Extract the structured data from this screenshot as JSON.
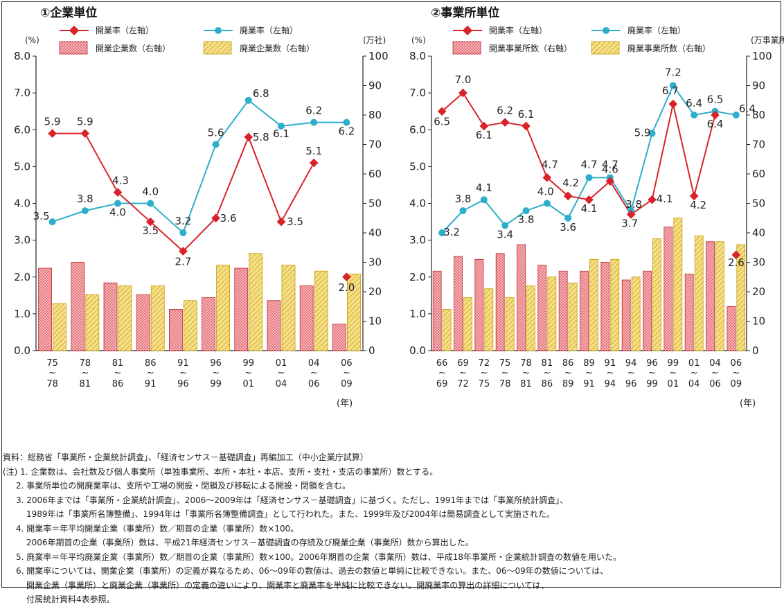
{
  "chart_data": [
    {
      "type": "bar+line",
      "title": "①企業単位",
      "left_unit": "(%)",
      "right_unit": "(万社)",
      "year_unit": "(年)",
      "left_axis": {
        "ylim": [
          0,
          8
        ],
        "ticks": [
          "0.0",
          "1.0",
          "2.0",
          "3.0",
          "4.0",
          "5.0",
          "6.0",
          "7.0",
          "8.0"
        ]
      },
      "right_axis": {
        "ylim": [
          0,
          100
        ],
        "ticks": [
          "0",
          "10",
          "20",
          "30",
          "40",
          "50",
          "60",
          "70",
          "80",
          "90",
          "100"
        ]
      },
      "categories": [
        [
          "75",
          "78"
        ],
        [
          "78",
          "81"
        ],
        [
          "81",
          "86"
        ],
        [
          "86",
          "91"
        ],
        [
          "91",
          "96"
        ],
        [
          "96",
          "99"
        ],
        [
          "99",
          "01"
        ],
        [
          "01",
          "04"
        ],
        [
          "04",
          "06"
        ],
        [
          "06",
          "09"
        ]
      ],
      "legend": {
        "open_rate": "開業率（左軸）",
        "close_rate": "廃業率（左軸）",
        "open_count": "開業企業数（右軸）",
        "close_count": "廃業企業数（右軸）"
      },
      "series": [
        {
          "key": "open_rate",
          "axis": "left",
          "values": [
            5.9,
            5.9,
            4.3,
            3.5,
            2.7,
            3.6,
            5.8,
            3.5,
            5.1,
            2.0
          ],
          "labels": [
            "5.9",
            "5.9",
            "4.3",
            "3.5",
            "2.7",
            "3.6",
            "5.8",
            "3.5",
            "5.1",
            "2.0"
          ]
        },
        {
          "key": "close_rate",
          "axis": "left",
          "values": [
            3.5,
            3.8,
            4.0,
            4.0,
            3.2,
            5.6,
            6.8,
            6.1,
            6.2,
            6.2
          ],
          "labels": [
            "3.5",
            "3.8",
            "4.0",
            "4.0",
            "3.2",
            "5.6",
            "6.8",
            "6.1",
            "6.2",
            "6.2"
          ]
        },
        {
          "key": "open_count",
          "axis": "right",
          "values": [
            28,
            30,
            23,
            19,
            14,
            18,
            28,
            17,
            22,
            9
          ]
        },
        {
          "key": "close_count",
          "axis": "right",
          "values": [
            16,
            19,
            22,
            22,
            17,
            29,
            33,
            29,
            27,
            26
          ]
        }
      ],
      "colors": {
        "open_line": "#d8232a",
        "close_line": "#2eaecb",
        "open_bar": "#f3b9bd",
        "close_bar": "#f5df8a"
      }
    },
    {
      "type": "bar+line",
      "title": "②事業所単位",
      "left_unit": "(%)",
      "right_unit": "(万事業所",
      "year_unit": "(年)",
      "left_axis": {
        "ylim": [
          0,
          8
        ],
        "ticks": [
          "0.0",
          "1.0",
          "2.0",
          "3.0",
          "4.0",
          "5.0",
          "6.0",
          "7.0",
          "8.0"
        ]
      },
      "right_axis": {
        "ylim": [
          0,
          100
        ],
        "ticks": [
          "0",
          "10",
          "20",
          "30",
          "40",
          "50",
          "60",
          "70",
          "80",
          "90",
          "100"
        ]
      },
      "categories": [
        [
          "66",
          "69"
        ],
        [
          "69",
          "72"
        ],
        [
          "72",
          "75"
        ],
        [
          "75",
          "78"
        ],
        [
          "78",
          "81"
        ],
        [
          "81",
          "86"
        ],
        [
          "86",
          "89"
        ],
        [
          "89",
          "91"
        ],
        [
          "91",
          "94"
        ],
        [
          "94",
          "96"
        ],
        [
          "96",
          "99"
        ],
        [
          "99",
          "01"
        ],
        [
          "01",
          "04"
        ],
        [
          "04",
          "06"
        ],
        [
          "06",
          "09"
        ]
      ],
      "legend": {
        "open_rate": "開業率（左軸）",
        "close_rate": "廃業率（左軸）",
        "open_count": "開業事業所数（右軸）",
        "close_count": "廃業事業所数（右軸）"
      },
      "series": [
        {
          "key": "open_rate",
          "axis": "left",
          "values": [
            6.5,
            7.0,
            6.1,
            6.2,
            6.1,
            4.7,
            4.2,
            4.1,
            4.6,
            3.7,
            4.1,
            6.7,
            4.2,
            6.4,
            2.6
          ],
          "labels": [
            "6.5",
            "7.0",
            "6.1",
            "6.2",
            "6.1",
            "4.7",
            "4.2",
            "4.1",
            "4.6",
            "3.7",
            "4.1",
            "6.7",
            "4.2",
            "6.4",
            "2.6"
          ]
        },
        {
          "key": "close_rate",
          "axis": "left",
          "values": [
            3.2,
            3.8,
            4.1,
            3.4,
            3.8,
            4.0,
            3.6,
            4.7,
            4.7,
            3.8,
            5.9,
            7.2,
            6.4,
            6.5,
            6.4
          ],
          "labels": [
            "3.2",
            "3.8",
            "4.1",
            "3.4",
            "3.8",
            "4.0",
            "3.6",
            "4.7",
            "4.7",
            "3.8",
            "5.9",
            "7.2",
            "6.4",
            "6.5",
            "6.4"
          ]
        },
        {
          "key": "open_count",
          "axis": "right",
          "values": [
            27,
            32,
            31,
            33,
            36,
            29,
            27,
            27,
            30,
            24,
            27,
            42,
            26,
            37,
            15
          ]
        },
        {
          "key": "close_count",
          "axis": "right",
          "values": [
            14,
            18,
            21,
            18,
            22,
            25,
            23,
            31,
            31,
            25,
            38,
            45,
            39,
            37,
            36
          ]
        }
      ],
      "colors": {
        "open_line": "#d8232a",
        "close_line": "#2eaecb",
        "open_bar": "#f3b9bd",
        "close_bar": "#f5df8a"
      }
    }
  ],
  "notes": {
    "source": "資料：総務省「事業所・企業統計調査」、「経済センサス－基礎調査」再編加工（中小企業庁試算）",
    "note1": "(注) 1. 企業数は、会社数及び個人事業所（単独事業所、本所・本社・本店、支所・支社・支店の事業所）数とする。",
    "note2": "2. 事業所単位の開廃業率は、支所や工場の開設・閉鎖及び移転による開設・閉鎖を含む。",
    "note3a": "3. 2006年までは「事業所・企業統計調査」、2006～2009年は「経済センサス－基礎調査」に基づく。ただし、1991年までは「事業所統計調査」、",
    "note3b": "1989年は「事業所名簿整備」、1994年は「事業所名簿整備調査」として行われた。また、1999年及び2004年は簡易調査として実施された。",
    "note4a": "4. 開業率＝年平均開業企業（事業所）数／期首の企業（事業所）数×100。",
    "note4b": "2006年期首の企業（事業所）数は、平成21年経済センサス－基礎調査の存続及び廃業企業（事業所）数から算出した。",
    "note5": "5. 廃業率＝年平均廃業企業（事業所）数／期首の企業（事業所）数×100。2006年期首の企業（事業所）数は、平成18年事業所・企業統計調査の数値を用いた。",
    "note6a": "6. 開業率については、開業企業（事業所）の定義が異なるため、06～09年の数値は、過去の数値と単純に比較できない。また、06～09年の数値については、",
    "note6b": "開業企業（事業所）と廃業企業（事業所）の定義の違いにより、開業率と廃業率を単純に比較できない。開廃業率の算出の詳細については、",
    "note6c": "付属統計資料4表参照。"
  }
}
